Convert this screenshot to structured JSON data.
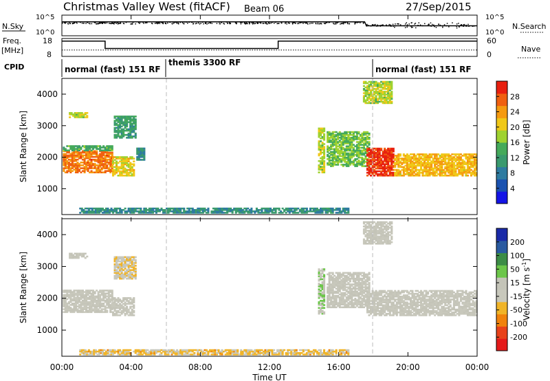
{
  "header": {
    "title": "Christmas Valley West (fitACF)",
    "beam": "Beam 06",
    "date": "27/Sep/2015"
  },
  "top_panels": {
    "nsky_label": "N.Sky",
    "nsearch_label": "N.Search",
    "nsky_ticks": [
      "10^5",
      "10^0"
    ],
    "nsearch_ticks": [
      "10^5",
      "10^0"
    ],
    "freq_label_1": "Freq.",
    "freq_label_2": "[MHz]",
    "freq_ticks": [
      "18",
      "8"
    ],
    "nave_label": "Nave",
    "nave_ticks": [
      "60",
      "0"
    ],
    "cpid_label": "CPID",
    "cpid_segments": [
      {
        "label": "normal (fast) 151 RF",
        "start_hour": 0
      },
      {
        "label": "themis 3300 RF",
        "start_hour": 6
      },
      {
        "label": "normal (fast) 151 RF",
        "start_hour": 18
      }
    ]
  },
  "colorbars": {
    "power": {
      "label": "Power [dB]",
      "ticks": [
        "4",
        "8",
        "12",
        "16",
        "20",
        "24",
        "28"
      ]
    },
    "velocity": {
      "label_main": "Velocity [m s",
      "label_exp": "-1",
      "label_end": "]",
      "ticks": [
        "200",
        "100",
        "50",
        "15",
        "-15",
        "-50",
        "-100",
        "-200"
      ]
    }
  },
  "colors": {
    "power": [
      "#1414e6",
      "#1a52b0",
      "#2e7ba0",
      "#3a9a6e",
      "#45aa5a",
      "#9fd230",
      "#f0c818",
      "#f59a10",
      "#f06010",
      "#e82010"
    ],
    "velocity": [
      "#1a2aa8",
      "#2a5aa0",
      "#3c8c46",
      "#6cc64a",
      "#c4c4b8",
      "#c8c8bc",
      "#f0b428",
      "#f0820c",
      "#e8421a",
      "#e41a1a"
    ]
  },
  "chart_data": [
    {
      "type": "line",
      "title": "N.Sky / N.Search",
      "x_unit": "hours UT",
      "xlim": [
        0,
        24
      ],
      "ylim_log10": [
        0,
        5
      ],
      "series": [
        {
          "name": "N.Search",
          "x": [
            0,
            3,
            6,
            9,
            12,
            15,
            17.5,
            17.6,
            24
          ],
          "y_log10": [
            3.8,
            3.8,
            3.8,
            3.8,
            3.8,
            3.8,
            3.8,
            2.6,
            2.6
          ]
        }
      ]
    },
    {
      "type": "line",
      "title": "Freq. / Nave",
      "x_unit": "hours UT",
      "xlim": [
        0,
        24
      ],
      "ylim_freq_mhz": [
        8,
        18
      ],
      "ylim_nave": [
        0,
        60
      ],
      "series": [
        {
          "name": "Freq.",
          "x": [
            0,
            2.5,
            2.5,
            12.5,
            12.5,
            24
          ],
          "y": [
            17.2,
            17.2,
            12.3,
            12.3,
            17.2,
            17.2
          ]
        },
        {
          "name": "Nave",
          "x": [
            0,
            24
          ],
          "y": [
            20,
            20
          ]
        }
      ]
    },
    {
      "type": "heatmap",
      "title": "Power",
      "xlabel": "",
      "ylabel": "Slant Range [km]",
      "xlim": [
        0,
        24
      ],
      "ylim": [
        180,
        4500
      ],
      "y_ticks": [
        1000,
        2000,
        3000,
        4000
      ],
      "value_unit": "dB",
      "value_range": [
        0,
        32
      ],
      "regions": [
        {
          "x0": 0.05,
          "x1": 2.9,
          "y0": 1500,
          "y1": 2200,
          "value": 26
        },
        {
          "x0": 0.05,
          "x1": 2.9,
          "y0": 2200,
          "y1": 2350,
          "value": 14
        },
        {
          "x0": 2.9,
          "x1": 4.2,
          "y0": 1400,
          "y1": 2000,
          "value": 20
        },
        {
          "x0": 3.0,
          "x1": 4.3,
          "y0": 2600,
          "y1": 3300,
          "value": 12
        },
        {
          "x0": 0.4,
          "x1": 1.5,
          "y0": 3250,
          "y1": 3400,
          "value": 18
        },
        {
          "x0": 4.3,
          "x1": 4.7,
          "y0": 1900,
          "y1": 2300,
          "value": 10
        },
        {
          "x0": 14.8,
          "x1": 15.2,
          "y0": 1500,
          "y1": 2900,
          "value": 18
        },
        {
          "x0": 15.3,
          "x1": 17.8,
          "y0": 1700,
          "y1": 2800,
          "value": 16
        },
        {
          "x0": 17.6,
          "x1": 19.2,
          "y0": 1400,
          "y1": 2300,
          "value": 30
        },
        {
          "x0": 19.2,
          "x1": 24,
          "y0": 1400,
          "y1": 2100,
          "value": 22
        },
        {
          "x0": 17.4,
          "x1": 19.1,
          "y0": 3700,
          "y1": 4400,
          "value": 18
        },
        {
          "x0": 1.0,
          "x1": 16.5,
          "y0": 220,
          "y1": 380,
          "value": 10
        }
      ]
    },
    {
      "type": "heatmap",
      "title": "Velocity",
      "xlabel": "Time UT",
      "ylabel": "Slant Range [km]",
      "xlim": [
        0,
        24
      ],
      "ylim": [
        180,
        4500
      ],
      "y_ticks": [
        1000,
        2000,
        3000,
        4000
      ],
      "x_ticks": [
        "00:00",
        "04:00",
        "08:00",
        "12:00",
        "16:00",
        "20:00",
        "00:00"
      ],
      "value_unit": "m s-1",
      "value_range": [
        -250,
        250
      ],
      "regions": [
        {
          "x0": 0.05,
          "x1": 2.9,
          "y0": 1550,
          "y1": 2250,
          "value": 0
        },
        {
          "x0": 2.9,
          "x1": 4.2,
          "y0": 1450,
          "y1": 2000,
          "value": 0
        },
        {
          "x0": 3.0,
          "x1": 4.3,
          "y0": 2600,
          "y1": 3300,
          "value": -40
        },
        {
          "x0": 0.4,
          "x1": 1.5,
          "y0": 3250,
          "y1": 3400,
          "value": 5
        },
        {
          "x0": 14.8,
          "x1": 15.2,
          "y0": 1500,
          "y1": 2900,
          "value": 40
        },
        {
          "x0": 15.3,
          "x1": 17.8,
          "y0": 1700,
          "y1": 2800,
          "value": 0
        },
        {
          "x0": 17.6,
          "x1": 24,
          "y0": 1450,
          "y1": 2250,
          "value": 0
        },
        {
          "x0": 17.4,
          "x1": 19.1,
          "y0": 3700,
          "y1": 4400,
          "value": 0
        },
        {
          "x0": 1.0,
          "x1": 16.5,
          "y0": 220,
          "y1": 380,
          "value": -60
        }
      ]
    }
  ]
}
